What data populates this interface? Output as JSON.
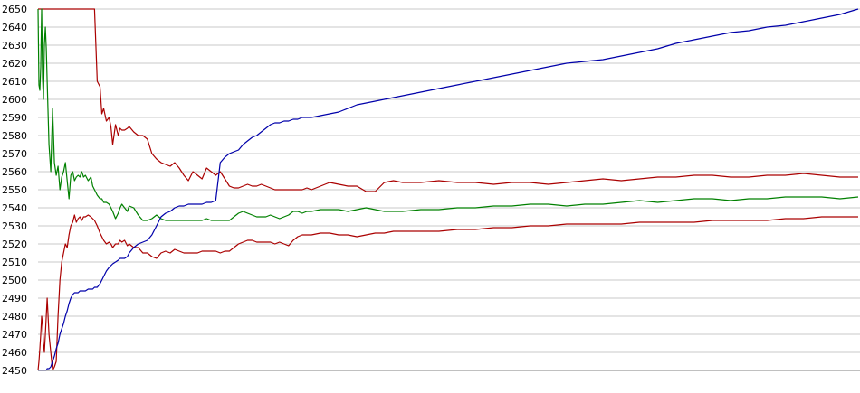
{
  "chart_data": {
    "type": "line",
    "title": "",
    "xlabel": "",
    "ylabel": "",
    "grid": true,
    "legend": "none",
    "x": [
      0,
      1,
      2,
      3,
      4,
      5,
      6,
      7,
      8,
      9,
      10,
      12,
      14,
      16,
      18,
      20,
      22,
      24,
      26,
      28,
      30,
      32,
      34,
      36,
      38,
      40,
      42,
      44,
      46,
      48,
      50,
      52,
      55,
      58,
      60,
      62,
      65,
      68,
      70,
      72,
      75,
      78,
      80,
      82,
      85,
      88,
      90,
      92,
      95,
      98,
      100,
      105,
      110,
      115,
      120,
      125,
      130,
      135,
      140,
      145,
      150,
      155,
      160,
      165,
      170,
      175,
      180,
      185,
      190,
      195,
      200,
      205,
      210,
      215,
      220,
      225,
      230,
      235,
      240,
      245,
      250,
      255,
      260,
      265,
      270,
      275,
      280,
      285,
      290,
      295,
      300,
      310,
      320,
      330,
      340,
      350,
      360,
      370,
      380,
      390,
      400,
      420,
      440,
      460,
      480,
      500,
      520,
      540,
      560,
      580,
      600,
      620,
      640,
      660,
      680,
      700,
      720,
      740,
      760,
      780,
      800,
      820,
      840,
      860,
      880,
      900
    ],
    "ylim": [
      2450,
      2650
    ],
    "yticks": [
      "2450",
      "2460",
      "2470",
      "2480",
      "2490",
      "2500",
      "2510",
      "2520",
      "2530",
      "2540",
      "2550",
      "2560",
      "2570",
      "2580",
      "2590",
      "2600",
      "2610",
      "2620",
      "2630",
      "2640",
      "2650"
    ],
    "series": [
      {
        "color": "#aa0000",
        "values": [
          2650,
          2650,
          2650,
          2650,
          2650,
          2650,
          2650,
          2650,
          2650,
          2650,
          2650,
          2650,
          2650,
          2650,
          2650,
          2650,
          2650,
          2650,
          2650,
          2650,
          2650,
          2650,
          2650,
          2650,
          2650,
          2650,
          2650,
          2650,
          2650,
          2650,
          2650,
          2650,
          2650,
          2650,
          2650,
          2650,
          2610,
          2607,
          2592,
          2595,
          2588,
          2590,
          2585,
          2575,
          2586,
          2580,
          2584,
          2583,
          2583,
          2584,
          2585,
          2582,
          2580,
          2580,
          2578,
          2570,
          2567,
          2565,
          2564,
          2563,
          2565,
          2562,
          2558,
          2555,
          2560,
          2558,
          2556,
          2562,
          2560,
          2558,
          2560,
          2556,
          2552,
          2551,
          2551,
          2552,
          2553,
          2552,
          2552,
          2553,
          2552,
          2551,
          2550,
          2550,
          2550,
          2550,
          2550,
          2550,
          2550,
          2551,
          2550,
          2552,
          2554,
          2553,
          2552,
          2552,
          2549,
          2549,
          2554,
          2555,
          2554,
          2554,
          2555,
          2554,
          2554,
          2553,
          2554,
          2554,
          2553,
          2554,
          2555,
          2556,
          2555,
          2556,
          2557,
          2557,
          2558,
          2558,
          2557,
          2557,
          2558,
          2558,
          2559,
          2558,
          2557,
          2557
        ]
      },
      {
        "color": "#008000",
        "values": [
          2650,
          2608,
          2605,
          2618,
          2650,
          2612,
          2600,
          2630,
          2640,
          2628,
          2610,
          2575,
          2560,
          2595,
          2565,
          2558,
          2563,
          2550,
          2557,
          2560,
          2565,
          2555,
          2545,
          2558,
          2560,
          2555,
          2557,
          2558,
          2557,
          2560,
          2557,
          2558,
          2555,
          2557,
          2552,
          2550,
          2547,
          2545,
          2545,
          2543,
          2543,
          2542,
          2540,
          2538,
          2534,
          2537,
          2540,
          2542,
          2540,
          2538,
          2541,
          2540,
          2536,
          2533,
          2533,
          2534,
          2536,
          2534,
          2533,
          2533,
          2533,
          2533,
          2533,
          2533,
          2533,
          2533,
          2533,
          2534,
          2533,
          2533,
          2533,
          2533,
          2533,
          2535,
          2537,
          2538,
          2537,
          2536,
          2535,
          2535,
          2535,
          2536,
          2535,
          2534,
          2535,
          2536,
          2538,
          2538,
          2537,
          2538,
          2538,
          2539,
          2539,
          2539,
          2538,
          2539,
          2540,
          2539,
          2538,
          2538,
          2538,
          2539,
          2539,
          2540,
          2540,
          2541,
          2541,
          2542,
          2542,
          2541,
          2542,
          2542,
          2543,
          2544,
          2543,
          2544,
          2545,
          2545,
          2544,
          2545,
          2545,
          2546,
          2546,
          2546,
          2545,
          2546
        ]
      },
      {
        "color": "#aa0000",
        "values": [
          2450,
          2455,
          2462,
          2470,
          2480,
          2475,
          2465,
          2460,
          2470,
          2480,
          2490,
          2470,
          2460,
          2450,
          2452,
          2455,
          2480,
          2500,
          2510,
          2515,
          2520,
          2518,
          2525,
          2530,
          2532,
          2536,
          2532,
          2534,
          2535,
          2533,
          2535,
          2535,
          2536,
          2535,
          2534,
          2533,
          2530,
          2526,
          2524,
          2522,
          2520,
          2521,
          2520,
          2518,
          2520,
          2520,
          2522,
          2521,
          2522,
          2519,
          2520,
          2518,
          2518,
          2515,
          2515,
          2513,
          2512,
          2515,
          2516,
          2515,
          2517,
          2516,
          2515,
          2515,
          2515,
          2515,
          2516,
          2516,
          2516,
          2516,
          2515,
          2516,
          2516,
          2518,
          2520,
          2521,
          2522,
          2522,
          2521,
          2521,
          2521,
          2521,
          2520,
          2521,
          2520,
          2519,
          2522,
          2524,
          2525,
          2525,
          2525,
          2526,
          2526,
          2525,
          2525,
          2524,
          2525,
          2526,
          2526,
          2527,
          2527,
          2527,
          2527,
          2528,
          2528,
          2529,
          2529,
          2530,
          2530,
          2531,
          2531,
          2531,
          2531,
          2532,
          2532,
          2532,
          2532,
          2533,
          2533,
          2533,
          2533,
          2534,
          2534,
          2535,
          2535,
          2535
        ]
      },
      {
        "color": "#0000aa",
        "values": [
          2450,
          2450,
          2450,
          2450,
          2450,
          2450,
          2450,
          2450,
          2450,
          2450,
          2451,
          2451,
          2452,
          2455,
          2458,
          2462,
          2465,
          2470,
          2473,
          2476,
          2480,
          2483,
          2487,
          2490,
          2492,
          2493,
          2493,
          2493,
          2494,
          2494,
          2494,
          2494,
          2495,
          2495,
          2495,
          2496,
          2496,
          2498,
          2500,
          2502,
          2505,
          2507,
          2508,
          2509,
          2510,
          2511,
          2512,
          2512,
          2512,
          2513,
          2515,
          2518,
          2520,
          2521,
          2522,
          2525,
          2530,
          2535,
          2537,
          2538,
          2540,
          2541,
          2541,
          2542,
          2542,
          2542,
          2542,
          2543,
          2543,
          2544,
          2565,
          2568,
          2570,
          2571,
          2572,
          2575,
          2577,
          2579,
          2580,
          2582,
          2584,
          2586,
          2587,
          2587,
          2588,
          2588,
          2589,
          2589,
          2590,
          2590,
          2590,
          2591,
          2592,
          2593,
          2595,
          2597,
          2598,
          2599,
          2600,
          2601,
          2602,
          2604,
          2606,
          2608,
          2610,
          2612,
          2614,
          2616,
          2618,
          2620,
          2621,
          2622,
          2624,
          2626,
          2628,
          2631,
          2633,
          2635,
          2637,
          2638,
          2640,
          2641,
          2643,
          2645,
          2647,
          2650
        ]
      }
    ]
  }
}
